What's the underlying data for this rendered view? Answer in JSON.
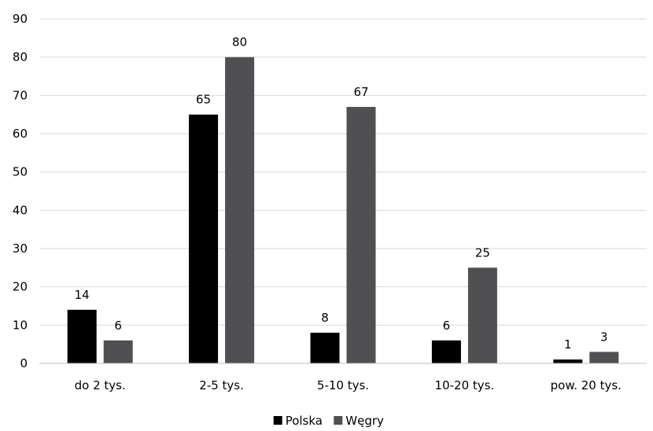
{
  "chart_data": {
    "type": "bar",
    "title": "",
    "xlabel": "",
    "ylabel": "",
    "categories": [
      "do 2 tys.",
      "2-5 tys.",
      "5-10 tys.",
      "10-20 tys.",
      "pow. 20 tys."
    ],
    "series": [
      {
        "name": "Polska",
        "values": [
          14,
          65,
          8,
          6,
          1
        ],
        "color": "#000000"
      },
      {
        "name": "Węgry",
        "values": [
          6,
          80,
          67,
          25,
          3
        ],
        "color": "#505053"
      }
    ],
    "ylim": [
      0,
      90
    ],
    "yticks": [
      0,
      10,
      20,
      30,
      40,
      50,
      60,
      70,
      80,
      90
    ],
    "grid": true,
    "legend_position": "bottom",
    "data_labels": true
  }
}
